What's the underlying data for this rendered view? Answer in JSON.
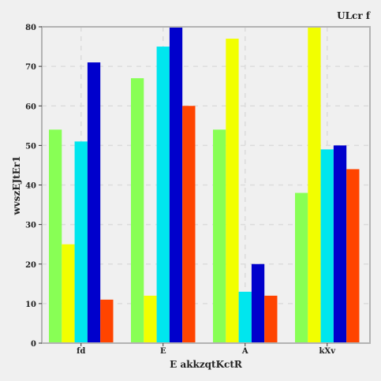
{
  "chart_data": {
    "type": "bar",
    "title": "ULcr f",
    "xlabel": "E akkzqtKctR",
    "ylabel": "wvszEJtEr1",
    "categories": [
      "fd",
      "E",
      "A",
      "kXv"
    ],
    "ylim": [
      0,
      80
    ],
    "yticks": [
      0,
      10,
      20,
      30,
      40,
      50,
      60,
      70,
      80
    ],
    "grid": true,
    "legend": "none",
    "series": [
      {
        "color": "#88ff55",
        "values": [
          54,
          67,
          54,
          38
        ]
      },
      {
        "color": "#f2ff00",
        "values": [
          25,
          12,
          77,
          80
        ]
      },
      {
        "color": "#00e6ee",
        "values": [
          51,
          75,
          13,
          49
        ]
      },
      {
        "color": "#0000cc",
        "values": [
          71,
          80,
          20,
          50
        ]
      },
      {
        "color": "#ff4400",
        "values": [
          11,
          60,
          12,
          44
        ]
      }
    ]
  }
}
